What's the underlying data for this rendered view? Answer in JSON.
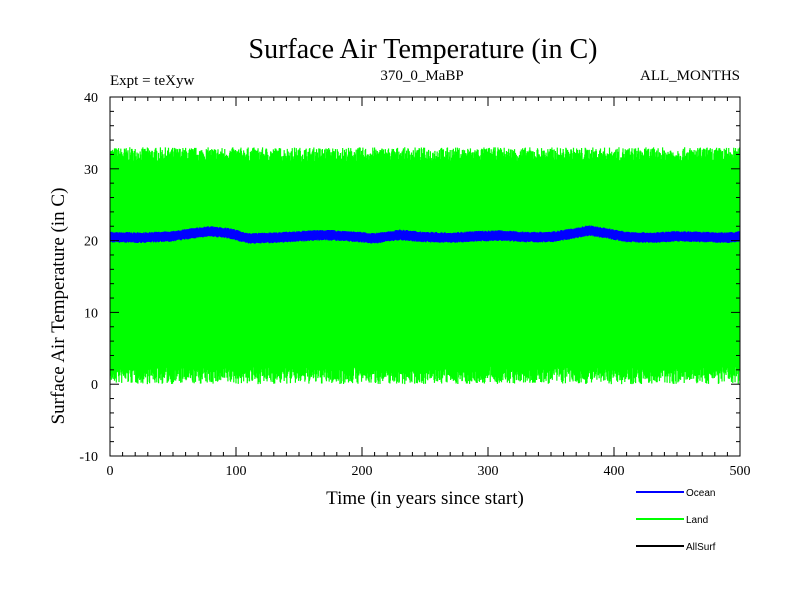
{
  "chart_data": {
    "type": "line",
    "title": "Surface Air Temperature (in C)",
    "subtitle_left": "Expt = teXyw",
    "subtitle_center": "370_0_MaBP",
    "subtitle_right": "ALL_MONTHS",
    "xlabel": "Time (in years since start)",
    "ylabel": "Surface Air Temperature (in C)",
    "xlim": [
      0,
      500
    ],
    "ylim": [
      -10,
      40
    ],
    "xticks": [
      0,
      100,
      200,
      300,
      400,
      500
    ],
    "yticks": [
      -10,
      0,
      10,
      20,
      30,
      40
    ],
    "xtick_labels": [
      "0",
      "100",
      "200",
      "300",
      "400",
      "500"
    ],
    "ytick_labels": [
      "-10",
      "0",
      "10",
      "20",
      "30",
      "40"
    ],
    "grid": false,
    "legend_placement": "bottom-right, below plot",
    "series": [
      {
        "name": "Land",
        "color": "#00ff00",
        "style": "monthly oscillation band",
        "envelope_max": 32.5,
        "envelope_min": 1.0,
        "approx_min": 0.0,
        "approx_max": 33.0
      },
      {
        "name": "Ocean",
        "color": "#0000ff",
        "style": "thick line with small monthly oscillation",
        "values_x": [
          0,
          25,
          50,
          65,
          80,
          95,
          110,
          130,
          150,
          170,
          190,
          210,
          230,
          250,
          270,
          290,
          310,
          330,
          350,
          365,
          380,
          395,
          410,
          430,
          450,
          470,
          490,
          500
        ],
        "values_y": [
          20.5,
          20.4,
          20.6,
          21.0,
          21.3,
          21.0,
          20.3,
          20.4,
          20.6,
          20.8,
          20.6,
          20.3,
          20.8,
          20.5,
          20.4,
          20.6,
          20.7,
          20.5,
          20.5,
          20.9,
          21.4,
          21.0,
          20.5,
          20.4,
          20.6,
          20.5,
          20.4,
          20.6
        ]
      },
      {
        "name": "AllSurf",
        "color": "#000000",
        "style": "line",
        "values_x": [
          0,
          500
        ],
        "values_y": [
          20.6,
          20.6
        ]
      }
    ],
    "legend": [
      {
        "name": "Ocean",
        "color": "#0000ff"
      },
      {
        "name": "Land",
        "color": "#00ff00"
      },
      {
        "name": "AllSurf",
        "color": "#000000"
      }
    ]
  }
}
